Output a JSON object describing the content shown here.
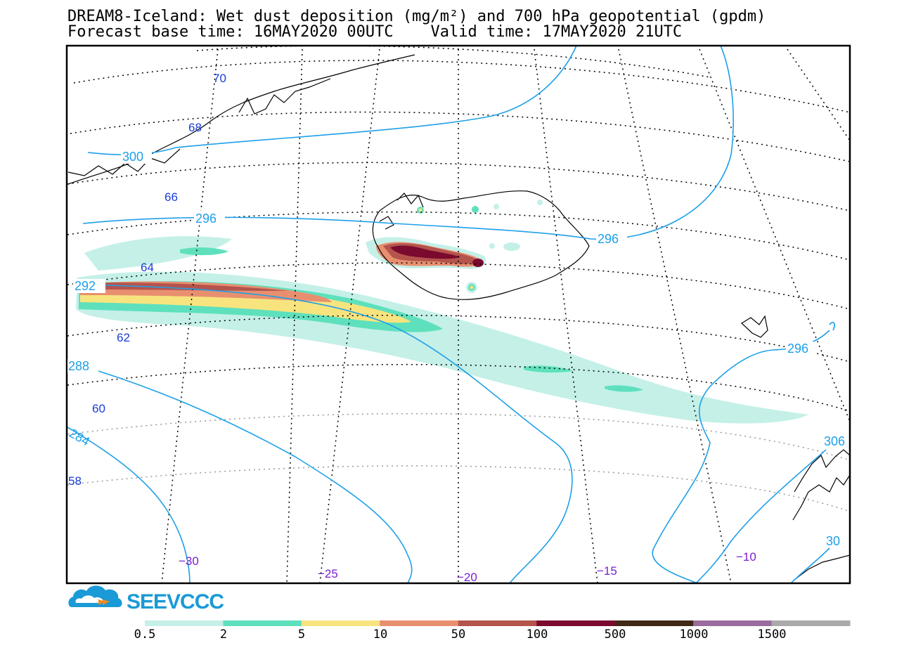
{
  "title": {
    "line1": "DREAM8-Iceland: Wet dust deposition (mg/m²) and 700 hPa geopotential (gpdm)",
    "line2": "Forecast base time: 16MAY2020 00UTC    Valid time: 17MAY2020 21UTC"
  },
  "latitude_labels": [
    "70",
    "68",
    "66",
    "64",
    "62",
    "60",
    "58"
  ],
  "longitude_labels": [
    "−30",
    "−25",
    "−20",
    "−15",
    "−10"
  ],
  "geopotential_labels": [
    "300",
    "296",
    "296",
    "292",
    "296",
    "288",
    "284",
    "306",
    "30"
  ],
  "logo": {
    "text": "SEEVCCC"
  },
  "colorbar": {
    "labels": [
      "0.5",
      "2",
      "5",
      "10",
      "50",
      "100",
      "500",
      "1000",
      "1500"
    ],
    "colors": [
      "#c4f0e8",
      "#5ee0bd",
      "#f7e47e",
      "#e88f70",
      "#b4544d",
      "#7a0a2e",
      "#402818",
      "#9a6c9e",
      "#aaaaaa"
    ]
  }
}
